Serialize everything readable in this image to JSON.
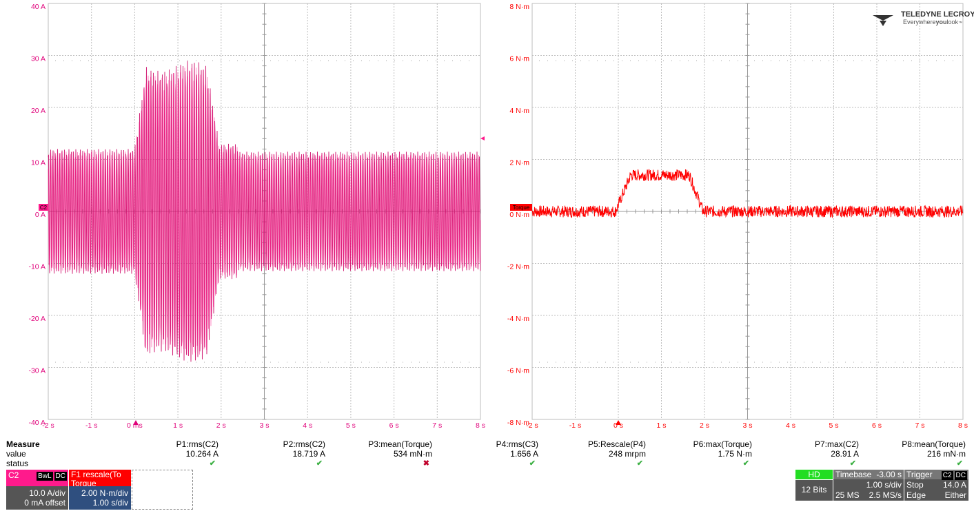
{
  "colors": {
    "c2": "#cc0063",
    "c2_channel": "#ff1a8c",
    "torque": "#ff0000",
    "grid": "#bdbdbd",
    "label_left": "#e0007a",
    "label_right": "#ff0000",
    "hd": "#22dd22"
  },
  "left_plot": {
    "y_labels": [
      "40 A",
      "30 A",
      "20 A",
      "10 A",
      "0 A",
      "-10 A",
      "-20 A",
      "-30 A",
      "-40 A"
    ],
    "x_labels": [
      "-2 s",
      "-1 s",
      "0 ms",
      "1 s",
      "2 s",
      "3 s",
      "4 s",
      "5 s",
      "6 s",
      "7 s",
      "8 s"
    ],
    "marker": "C2"
  },
  "right_plot": {
    "y_labels": [
      "8 N·m",
      "6 N·m",
      "4 N·m",
      "2 N·m",
      "0 N·m",
      "-2 N·m",
      "-4 N·m",
      "-6 N·m",
      "-8 N·m"
    ],
    "x_labels": [
      "-2 s",
      "-1 s",
      "0 s",
      "1 s",
      "2 s",
      "3 s",
      "4 s",
      "5 s",
      "6 s",
      "7 s",
      "8 s"
    ],
    "marker": "Torque"
  },
  "logo": {
    "brand": "TELEDYNE LECROY",
    "tagline_a": "Everywhere",
    "tagline_b": "you",
    "tagline_c": "look",
    "tm": "™"
  },
  "measure": {
    "title": "Measure",
    "row_value": "value",
    "row_status": "status",
    "params": [
      {
        "name": "P1:rms(C2)",
        "value": "10.264 A",
        "status": "ok"
      },
      {
        "name": "P2:rms(C2)",
        "value": "18.719 A",
        "status": "ok"
      },
      {
        "name": "P3:mean(Torque)",
        "value": "534 mN·m",
        "status": "warn"
      },
      {
        "name": "P4:rms(C3)",
        "value": "1.656 A",
        "status": "ok"
      },
      {
        "name": "P5:Rescale(P4)",
        "value": "248 mrpm",
        "status": "ok"
      },
      {
        "name": "P6:max(Torque)",
        "value": "1.75 N·m",
        "status": "ok"
      },
      {
        "name": "P7:max(C2)",
        "value": "28.91 A",
        "status": "ok"
      },
      {
        "name": "P8:mean(Torque)",
        "value": "216 mN·m",
        "status": "ok"
      }
    ]
  },
  "descriptors": {
    "c2": {
      "label": "C2",
      "tag1": "BwL",
      "tag2": "DC",
      "scale": "10.0 A/div",
      "offset": "0 mA offset"
    },
    "f1": {
      "label": "F1",
      "name_a": "rescale(To",
      "name_b": "Torque",
      "scale": "2.00 N·m/div",
      "time": "1.00 s/div"
    }
  },
  "acq": {
    "hd": "HD",
    "bits": "12 Bits",
    "timebase_label": "Timebase",
    "timebase_delay": "-3.00 s",
    "timebase_div": "1.00 s/div",
    "samples": "25 MS",
    "rate": "2.5 MS/s",
    "trigger_label": "Trigger",
    "trigger_ch": "C2",
    "trigger_cpl": "DC",
    "mode": "Stop",
    "level": "14.0 A",
    "type": "Edge",
    "slope": "Either"
  }
}
